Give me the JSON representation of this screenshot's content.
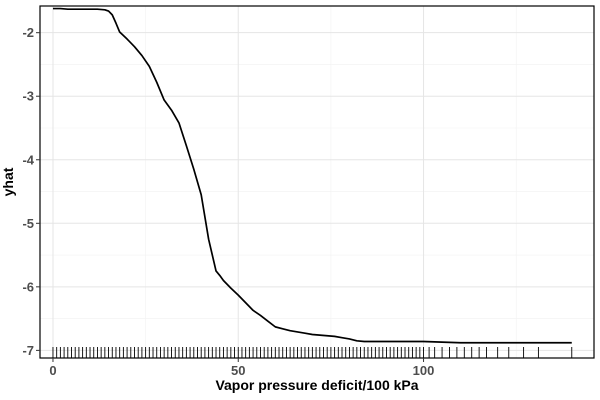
{
  "chart_data": {
    "type": "line",
    "title": "",
    "xlabel": "Vapor pressure deficit/100 kPa",
    "ylabel": "yhat",
    "xlim": [
      -3.5,
      146
    ],
    "ylim": [
      -7.12,
      -1.58
    ],
    "xticks": [
      0,
      50,
      100
    ],
    "yticks": [
      -7,
      -6,
      -5,
      -4,
      -3,
      -2
    ],
    "grid": true,
    "legend": "none",
    "colors": {
      "line": "#000000",
      "grid_major": "#e5e5e5",
      "grid_minor": "#f2f2f2",
      "rug": "#000000",
      "panel_border": "#000000"
    },
    "series": [
      {
        "x": [
          0,
          2,
          4,
          6,
          8,
          10,
          12,
          14,
          15,
          16,
          17,
          18,
          20,
          22,
          24,
          26,
          28,
          30,
          32,
          34,
          36,
          38,
          40,
          42,
          44,
          45,
          46,
          48,
          50,
          52,
          54,
          56,
          58,
          60,
          62,
          64,
          66,
          68,
          70,
          72,
          74,
          76,
          78,
          80,
          82,
          84,
          90,
          100,
          110,
          120,
          130,
          140
        ],
        "y": [
          -1.62,
          -1.62,
          -1.63,
          -1.63,
          -1.63,
          -1.63,
          -1.63,
          -1.64,
          -1.66,
          -1.72,
          -1.85,
          -1.99,
          -2.1,
          -2.22,
          -2.36,
          -2.53,
          -2.78,
          -3.06,
          -3.22,
          -3.42,
          -3.78,
          -4.15,
          -4.55,
          -5.25,
          -5.75,
          -5.82,
          -5.9,
          -6.02,
          -6.13,
          -6.25,
          -6.37,
          -6.45,
          -6.54,
          -6.63,
          -6.66,
          -6.69,
          -6.71,
          -6.73,
          -6.75,
          -6.76,
          -6.77,
          -6.78,
          -6.8,
          -6.82,
          -6.85,
          -6.86,
          -6.86,
          -6.86,
          -6.88,
          -6.88,
          -6.88,
          -6.88
        ]
      }
    ],
    "rug_x": [
      0,
      1,
      2,
      3,
      4,
      5,
      6,
      7,
      8,
      9,
      10,
      11,
      12,
      13,
      14,
      15,
      16,
      17,
      18,
      19,
      20,
      21,
      22,
      23,
      24,
      25,
      26,
      27,
      28,
      29,
      30,
      31,
      32,
      33,
      34,
      35,
      36,
      37,
      38,
      39,
      40,
      41,
      42,
      43,
      44,
      45,
      46,
      47,
      48,
      49,
      50,
      51,
      52,
      53,
      54,
      55,
      56,
      57,
      58,
      59,
      60,
      61,
      62,
      63,
      64,
      65,
      66,
      67,
      68,
      69,
      70,
      71,
      72,
      73,
      74,
      75,
      76,
      77,
      78,
      79,
      80,
      81,
      82,
      83,
      84,
      85,
      86,
      87,
      88,
      89,
      90,
      91,
      92,
      93,
      94,
      95,
      96,
      97,
      98,
      99,
      100,
      101.5,
      103,
      105,
      107,
      109,
      111,
      113,
      115,
      117,
      120,
      123,
      127,
      131,
      140
    ]
  }
}
